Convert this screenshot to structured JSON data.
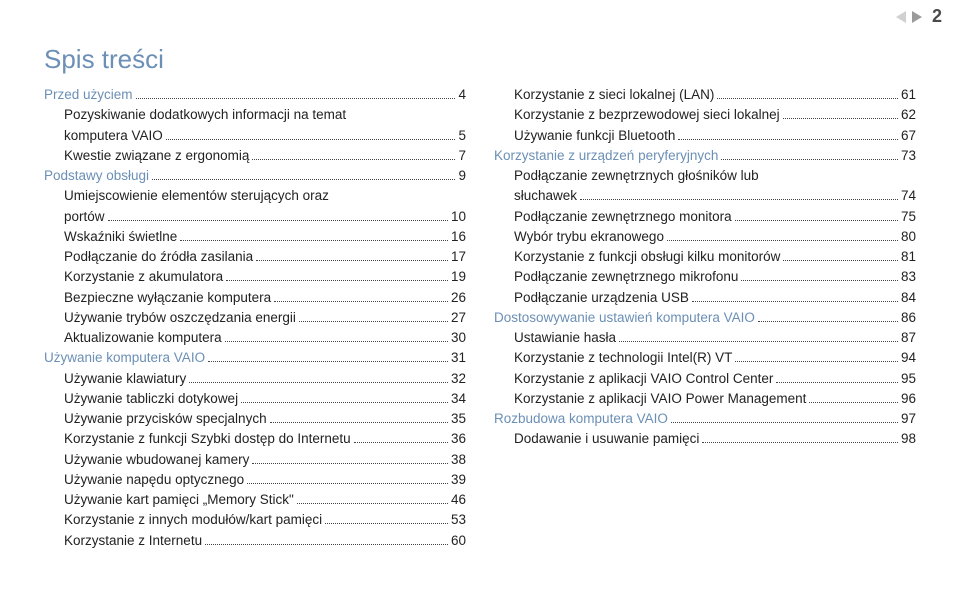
{
  "page_number": "2",
  "title": "Spis treści",
  "colors": {
    "heading": "#6b8fb5",
    "text": "#222222",
    "background": "#ffffff",
    "tri_light": "#d0d0d0",
    "tri_dark": "#9b9b9b"
  },
  "left_column": [
    {
      "label": "Przed użyciem",
      "page": "4",
      "indent": 0,
      "blue": true
    },
    {
      "label": "Pozyskiwanie dodatkowych informacji na temat",
      "indent": 1,
      "cont": "komputera VAIO",
      "page": "5"
    },
    {
      "label": "Kwestie związane z ergonomią",
      "page": "7",
      "indent": 1
    },
    {
      "label": "Podstawy obsługi",
      "page": "9",
      "indent": 0,
      "blue": true
    },
    {
      "label": "Umiejscowienie elementów sterujących oraz",
      "indent": 1,
      "cont": "portów",
      "page": "10"
    },
    {
      "label": "Wskaźniki świetlne",
      "page": "16",
      "indent": 1
    },
    {
      "label": "Podłączanie do źródła zasilania",
      "page": "17",
      "indent": 1
    },
    {
      "label": "Korzystanie z akumulatora",
      "page": "19",
      "indent": 1
    },
    {
      "label": "Bezpieczne wyłączanie komputera",
      "page": "26",
      "indent": 1
    },
    {
      "label": "Używanie trybów oszczędzania energii",
      "page": "27",
      "indent": 1
    },
    {
      "label": "Aktualizowanie komputera",
      "page": "30",
      "indent": 1
    },
    {
      "label": "Używanie komputera VAIO",
      "page": "31",
      "indent": 0,
      "blue": true
    },
    {
      "label": "Używanie klawiatury",
      "page": "32",
      "indent": 1
    },
    {
      "label": "Używanie tabliczki dotykowej",
      "page": "34",
      "indent": 1
    },
    {
      "label": "Używanie przycisków specjalnych",
      "page": "35",
      "indent": 1
    },
    {
      "label": "Korzystanie z funkcji Szybki dostęp do Internetu",
      "page": "36",
      "indent": 1
    },
    {
      "label": "Używanie wbudowanej kamery",
      "page": "38",
      "indent": 1
    },
    {
      "label": "Używanie napędu optycznego",
      "page": "39",
      "indent": 1
    },
    {
      "label": "Używanie kart pamięci „Memory Stick\"",
      "page": "46",
      "indent": 1
    },
    {
      "label": "Korzystanie z innych modułów/kart pamięci",
      "page": "53",
      "indent": 1
    },
    {
      "label": "Korzystanie z Internetu",
      "page": "60",
      "indent": 1
    }
  ],
  "right_column": [
    {
      "label": "Korzystanie z sieci lokalnej (LAN)",
      "page": "61",
      "indent": 1
    },
    {
      "label": "Korzystanie z bezprzewodowej sieci lokalnej",
      "page": "62",
      "indent": 1
    },
    {
      "label": "Używanie funkcji Bluetooth",
      "page": "67",
      "indent": 1
    },
    {
      "label": "Korzystanie z urządzeń peryferyjnych",
      "page": "73",
      "indent": 0,
      "blue": true
    },
    {
      "label": "Podłączanie zewnętrznych głośników lub",
      "indent": 1,
      "cont": "słuchawek",
      "page": "74"
    },
    {
      "label": "Podłączanie zewnętrznego monitora",
      "page": "75",
      "indent": 1
    },
    {
      "label": "Wybór trybu ekranowego",
      "page": "80",
      "indent": 1
    },
    {
      "label": "Korzystanie z funkcji obsługi kilku monitorów",
      "page": "81",
      "indent": 1
    },
    {
      "label": "Podłączanie zewnętrznego mikrofonu",
      "page": "83",
      "indent": 1
    },
    {
      "label": "Podłączanie urządzenia USB",
      "page": "84",
      "indent": 1
    },
    {
      "label": "Dostosowywanie ustawień komputera VAIO",
      "page": "86",
      "indent": 0,
      "blue": true
    },
    {
      "label": "Ustawianie hasła",
      "page": "87",
      "indent": 1
    },
    {
      "label": "Korzystanie z technologii Intel(R) VT",
      "page": "94",
      "indent": 1
    },
    {
      "label": "Korzystanie z aplikacji VAIO Control Center",
      "page": "95",
      "indent": 1
    },
    {
      "label": "Korzystanie z aplikacji VAIO Power Management",
      "page": "96",
      "indent": 1
    },
    {
      "label": "Rozbudowa komputera VAIO",
      "page": "97",
      "indent": 0,
      "blue": true
    },
    {
      "label": "Dodawanie i usuwanie pamięci",
      "page": "98",
      "indent": 1
    }
  ]
}
